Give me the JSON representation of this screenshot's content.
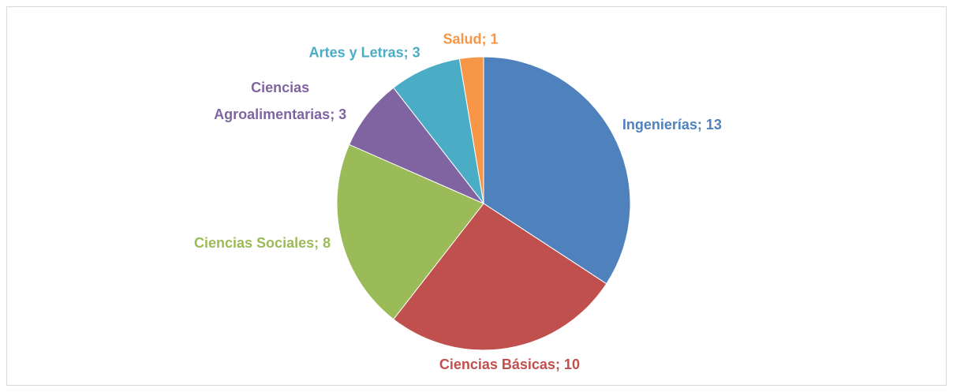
{
  "chart_data": {
    "type": "pie",
    "values": [
      13,
      10,
      8,
      3,
      3,
      1
    ],
    "value_labels": [
      "Ingenierías; 13",
      "Ciencias Básicas; 10",
      "Ciencias Sociales; 8",
      "Ciencias Agroalimentarias; 3",
      "Artes y Letras; 3",
      "Salud; 1"
    ],
    "colors": [
      "#4f81bd",
      "#c0504d",
      "#9bbb59",
      "#8064a2",
      "#4bacc6",
      "#f79646"
    ]
  }
}
